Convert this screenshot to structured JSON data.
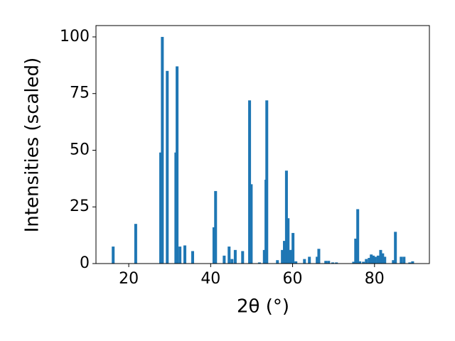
{
  "chart_data": {
    "type": "bar",
    "xlabel": "2θ (°)",
    "ylabel": "Intensities (scaled)",
    "x": [
      16.2,
      21.7,
      27.8,
      28.2,
      29.4,
      31.5,
      31.8,
      32.5,
      33.7,
      35.6,
      40.8,
      41.2,
      43.3,
      44.5,
      45.2,
      46.0,
      47.8,
      49.5,
      49.9,
      51.9,
      53.1,
      53.5,
      53.7,
      56.3,
      57.5,
      58.0,
      58.5,
      58.9,
      59.4,
      59.8,
      60.1,
      60.8,
      62.9,
      64.1,
      66.0,
      66.4,
      68.1,
      68.8,
      69.8,
      70.7,
      74.9,
      75.4,
      75.9,
      76.4,
      77.3,
      78.0,
      78.7,
      79.2,
      79.7,
      80.2,
      80.9,
      81.5,
      82.0,
      82.5,
      84.6,
      85.1,
      86.5,
      87.2,
      88.6,
      89.3
    ],
    "values": [
      7.5,
      17.5,
      49,
      100,
      85,
      49,
      87,
      7.5,
      8,
      5.5,
      16,
      32,
      3.5,
      7.5,
      2,
      6,
      5.5,
      72,
      35,
      0.5,
      6,
      37,
      72,
      1.5,
      6,
      10,
      41,
      20,
      6,
      6,
      13.5,
      1,
      2,
      3,
      3,
      6.5,
      1.2,
      1.2,
      0.5,
      0.5,
      0.8,
      11,
      24,
      1,
      0.8,
      2,
      2.5,
      4,
      3.5,
      3,
      3.5,
      6,
      4.5,
      3,
      1.5,
      14,
      3,
      3,
      0.5,
      1
    ],
    "color": "#1f77b4",
    "xlim": [
      12,
      93.4
    ],
    "xticks": [
      20,
      40,
      60,
      80
    ],
    "ylim": [
      0,
      105
    ],
    "yticks": [
      0,
      25,
      50,
      75,
      100
    ]
  }
}
